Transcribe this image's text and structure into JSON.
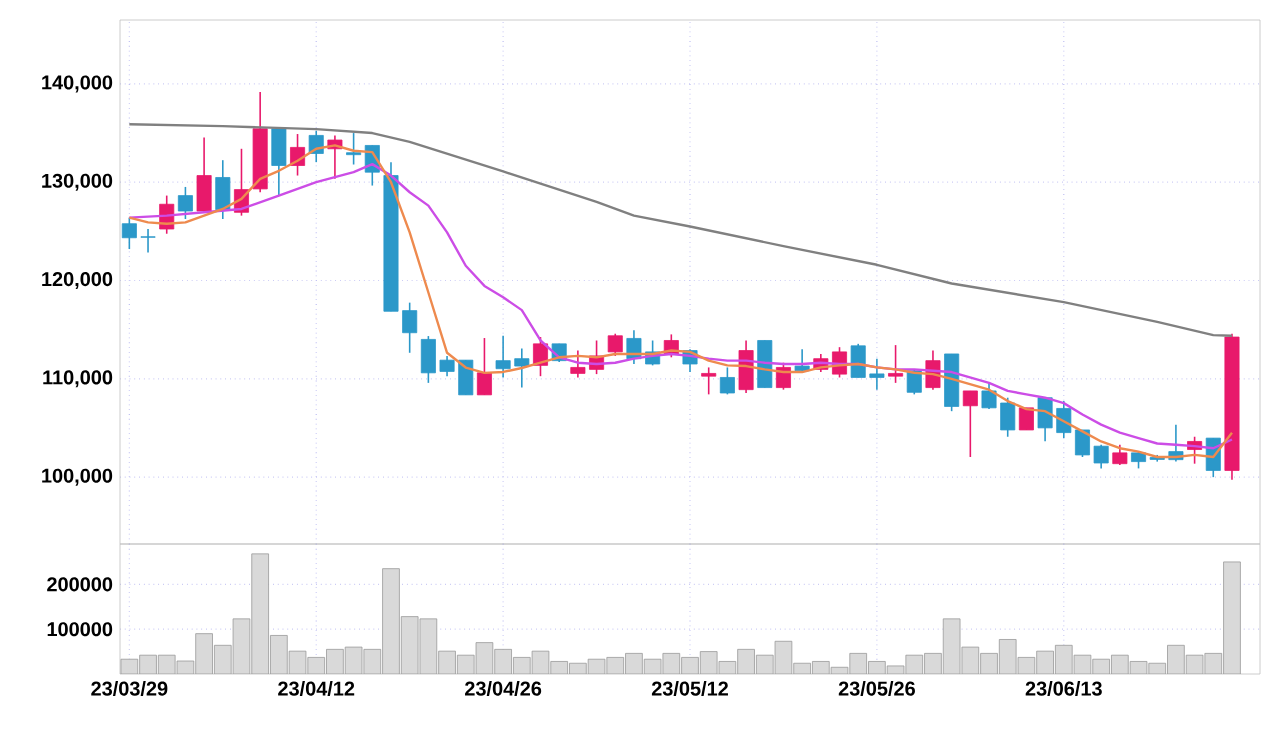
{
  "chart_data": [
    {
      "type": "candlestick",
      "categories": [
        null,
        null,
        null,
        null,
        null,
        null,
        null,
        null,
        null,
        null,
        null,
        null,
        null,
        null,
        null,
        null,
        null,
        null,
        null,
        null,
        null,
        null,
        null,
        null,
        null,
        null,
        null,
        null,
        null,
        null,
        null,
        null,
        null,
        null,
        null,
        null,
        null,
        null,
        null,
        null,
        null,
        null,
        null,
        null,
        null,
        null,
        null,
        null,
        null,
        null,
        null,
        null,
        null,
        null,
        null,
        null,
        null,
        null,
        null,
        null
      ],
      "ohlc": [
        [
          125780,
          126400,
          123200,
          124350
        ],
        [
          124450,
          125250,
          122850,
          124400
        ],
        [
          125240,
          128640,
          124760,
          127760
        ],
        [
          128640,
          129520,
          126260,
          127070
        ],
        [
          127070,
          134560,
          126940,
          130680
        ],
        [
          130480,
          132240,
          126260,
          127210
        ],
        [
          126940,
          133400,
          126600,
          129250
        ],
        [
          129320,
          139180,
          128980,
          135440
        ],
        [
          135440,
          135440,
          128640,
          131700
        ],
        [
          131700,
          134900,
          130680,
          133540
        ],
        [
          134760,
          135240,
          132040,
          132920
        ],
        [
          133400,
          134760,
          130340,
          134290
        ],
        [
          133000,
          135000,
          131800,
          132800
        ],
        [
          133740,
          133740,
          129660,
          131020
        ],
        [
          130680,
          132040,
          116870,
          116870
        ],
        [
          116940,
          117750,
          112650,
          114690
        ],
        [
          114010,
          114350,
          109590,
          110610
        ],
        [
          111900,
          112310,
          110270,
          110750
        ],
        [
          111900,
          111900,
          108370,
          108370
        ],
        [
          108370,
          114150,
          108370,
          110610
        ],
        [
          111850,
          114380,
          110140,
          111030
        ],
        [
          112050,
          113080,
          109110,
          111300
        ],
        [
          111370,
          114250,
          110270,
          113560
        ],
        [
          113560,
          113560,
          111700,
          111850
        ],
        [
          110550,
          112880,
          110140,
          111160
        ],
        [
          110960,
          113900,
          110480,
          112330
        ],
        [
          112740,
          114590,
          112330,
          114380
        ],
        [
          114110,
          114930,
          111510,
          112050
        ],
        [
          112740,
          113900,
          111370,
          111510
        ],
        [
          112530,
          114520,
          112190,
          113900
        ],
        [
          112880,
          113010,
          110690,
          111510
        ],
        [
          110270,
          111160,
          108420,
          110550
        ],
        [
          110140,
          111160,
          108420,
          108560
        ],
        [
          108900,
          113900,
          108560,
          112880
        ],
        [
          113900,
          113900,
          109110,
          109110
        ],
        [
          109110,
          111640,
          108900,
          111160
        ],
        [
          111300,
          113010,
          110620,
          110820
        ],
        [
          110960,
          112530,
          110690,
          112050
        ],
        [
          110480,
          113220,
          110140,
          112740
        ],
        [
          113360,
          113560,
          110140,
          110140
        ],
        [
          110500,
          112050,
          108900,
          110140
        ],
        [
          110270,
          113430,
          109590,
          110550
        ],
        [
          110820,
          110960,
          108420,
          108630
        ],
        [
          109110,
          112880,
          108900,
          111850
        ],
        [
          112530,
          112530,
          106710,
          107190
        ],
        [
          107260,
          108770,
          102050,
          108770
        ],
        [
          108770,
          109590,
          106920,
          107050
        ],
        [
          107540,
          108080,
          104110,
          104800
        ],
        [
          104800,
          107050,
          104800,
          107050
        ],
        [
          108080,
          108080,
          103640,
          105010
        ],
        [
          106990,
          107740,
          103980,
          104530
        ],
        [
          104800,
          104800,
          102050,
          102260
        ],
        [
          103150,
          103290,
          100890,
          101440
        ],
        [
          101370,
          103290,
          101230,
          102470
        ],
        [
          102470,
          102600,
          100890,
          101580
        ],
        [
          102000,
          102260,
          101580,
          101800
        ],
        [
          102600,
          105340,
          101580,
          101780
        ],
        [
          102810,
          104110,
          101370,
          103630
        ],
        [
          103970,
          103970,
          100000,
          100680
        ],
        [
          100680,
          114590,
          99730,
          114250
        ]
      ],
      "colors": [
        "#2b98c9",
        "#2b98c9",
        "#e8196b",
        "#2b98c9",
        "#e8196b",
        "#2b98c9",
        "#e8196b",
        "#e8196b",
        "#2b98c9",
        "#e8196b",
        "#2b98c9",
        "#e8196b",
        "#2b98c9",
        "#2b98c9",
        "#2b98c9",
        "#2b98c9",
        "#2b98c9",
        "#2b98c9",
        "#2b98c9",
        "#e8196b",
        "#2b98c9",
        "#2b98c9",
        "#e8196b",
        "#2b98c9",
        "#e8196b",
        "#e8196b",
        "#e8196b",
        "#2b98c9",
        "#2b98c9",
        "#e8196b",
        "#2b98c9",
        "#e8196b",
        "#2b98c9",
        "#e8196b",
        "#2b98c9",
        "#e8196b",
        "#2b98c9",
        "#e8196b",
        "#e8196b",
        "#2b98c9",
        "#2b98c9",
        "#e8196b",
        "#2b98c9",
        "#e8196b",
        "#2b98c9",
        "#e8196b",
        "#2b98c9",
        "#2b98c9",
        "#e8196b",
        "#2b98c9",
        "#2b98c9",
        "#2b98c9",
        "#2b98c9",
        "#e8196b",
        "#2b98c9",
        "#2b98c9",
        "#2b98c9",
        "#e8196b",
        "#2b98c9",
        "#e8196b"
      ],
      "series": [
        {
          "type": "line",
          "color": "#808080",
          "values": [
            135900,
            null,
            null,
            null,
            null,
            135700,
            null,
            null,
            null,
            null,
            135400,
            null,
            null,
            135000,
            null,
            134100,
            null,
            null,
            null,
            null,
            131100,
            null,
            null,
            null,
            null,
            128000,
            null,
            126600,
            null,
            null,
            125500,
            null,
            null,
            null,
            null,
            123500,
            null,
            null,
            null,
            null,
            121600,
            null,
            null,
            null,
            119700,
            null,
            null,
            null,
            null,
            null,
            117800,
            null,
            null,
            null,
            null,
            115800,
            null,
            null,
            114450,
            114380
          ]
        },
        {
          "type": "line",
          "color": "#cc4de6",
          "values": [
            126400,
            null,
            126600,
            null,
            126940,
            null,
            127280,
            null,
            128640,
            null,
            130000,
            null,
            131020,
            131840,
            130680,
            128980,
            127620,
            124900,
            121500,
            119450,
            118300,
            116990,
            113900,
            112190,
            111640,
            111510,
            111640,
            112050,
            112330,
            112530,
            112330,
            112050,
            111850,
            111850,
            111640,
            111510,
            111510,
            111640,
            111510,
            111510,
            111160,
            110960,
            110960,
            110820,
            110690,
            110140,
            109590,
            108770,
            108420,
            108080,
            107530,
            106370,
            105340,
            104520,
            103970,
            103420,
            103290,
            103150,
            102940,
            103830
          ]
        },
        {
          "type": "line",
          "color": "#ee8a4e",
          "values": [
            126400,
            125920,
            125780,
            125920,
            126600,
            127280,
            128300,
            130340,
            131160,
            132180,
            133400,
            133740,
            133200,
            133060,
            130000,
            124900,
            118780,
            112650,
            111150,
            110610,
            110700,
            111100,
            111640,
            112190,
            112330,
            112190,
            112530,
            112530,
            112530,
            112880,
            112740,
            111850,
            111370,
            111300,
            110960,
            110690,
            110690,
            111160,
            111370,
            111510,
            111160,
            110960,
            110620,
            110480,
            110000,
            109450,
            108900,
            107740,
            106920,
            106710,
            105680,
            104660,
            103630,
            102940,
            102600,
            102050,
            102050,
            102260,
            102050,
            104520
          ]
        }
      ],
      "ylim": [
        93200,
        146500
      ],
      "yticks": [
        {
          "value": 100000,
          "label": "100,000"
        },
        {
          "value": 110000,
          "label": "110,000"
        },
        {
          "value": 120000,
          "label": "120,000"
        },
        {
          "value": 130000,
          "label": "130,000"
        },
        {
          "value": 140000,
          "label": "140,000"
        }
      ],
      "grid": true,
      "tick_labels": "y"
    },
    {
      "type": "bar",
      "categories": [
        "23/03/29",
        null,
        null,
        null,
        null,
        null,
        null,
        null,
        null,
        null,
        "23/04/12",
        null,
        null,
        null,
        null,
        null,
        null,
        null,
        null,
        null,
        "23/04/26",
        null,
        null,
        null,
        null,
        null,
        null,
        null,
        null,
        null,
        "23/05/12",
        null,
        null,
        null,
        null,
        null,
        null,
        null,
        null,
        null,
        "23/05/26",
        null,
        null,
        null,
        null,
        null,
        null,
        null,
        null,
        null,
        "23/06/13",
        null,
        null,
        null,
        null,
        null,
        null,
        null,
        null,
        null
      ],
      "values": [
        33000,
        42000,
        42000,
        29000,
        90000,
        64000,
        123000,
        268000,
        86000,
        51000,
        37000,
        55000,
        60000,
        55000,
        235000,
        128000,
        123000,
        51000,
        42000,
        70000,
        55000,
        37000,
        51000,
        28000,
        24000,
        33000,
        37000,
        46000,
        33000,
        46000,
        37000,
        50000,
        28000,
        55000,
        42000,
        73000,
        24000,
        28000,
        15000,
        46000,
        28000,
        18000,
        42000,
        46000,
        123000,
        60000,
        46000,
        77000,
        37000,
        51000,
        64000,
        42000,
        33000,
        42000,
        28000,
        24000,
        64000,
        42000,
        46000,
        250000
      ],
      "color": "#d9d9d9",
      "ylim": [
        0,
        290000
      ],
      "yticks": [
        100000,
        200000
      ],
      "grid": true
    }
  ]
}
